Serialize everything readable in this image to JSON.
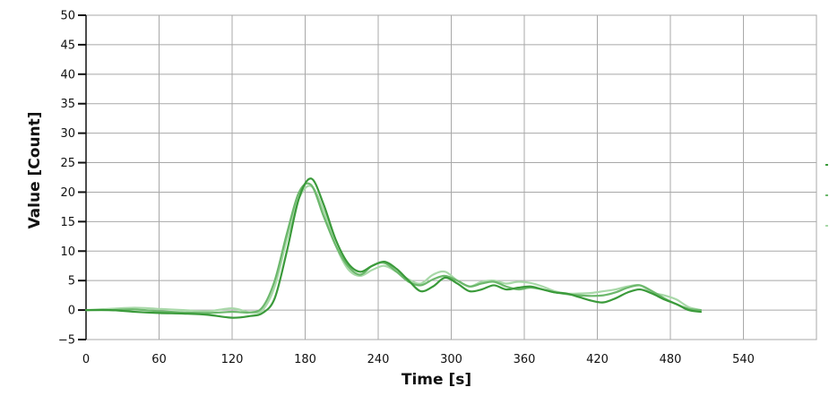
{
  "chart_data": {
    "type": "line",
    "xlabel": "Time [s]",
    "ylabel": "Value [Count]",
    "xlim": [
      0,
      600
    ],
    "ylim": [
      -5,
      50
    ],
    "x_ticks": [
      0,
      60,
      120,
      180,
      240,
      300,
      360,
      420,
      480,
      540
    ],
    "y_ticks": [
      -5,
      0,
      5,
      10,
      15,
      20,
      25,
      30,
      35,
      40,
      45,
      50
    ],
    "grid": true,
    "legend": "right, markers only",
    "series": [
      {
        "color": "#3a9a3a",
        "x": [
          0,
          20,
          40,
          60,
          80,
          100,
          120,
          135,
          145,
          155,
          165,
          175,
          185,
          195,
          205,
          215,
          225,
          235,
          245,
          255,
          265,
          275,
          285,
          295,
          305,
          315,
          325,
          335,
          345,
          355,
          365,
          375,
          385,
          395,
          405,
          415,
          425,
          435,
          445,
          455,
          465,
          475,
          485,
          495,
          505
        ],
        "y": [
          0,
          0,
          -0.3,
          -0.5,
          -0.6,
          -0.8,
          -1.3,
          -1,
          -0.5,
          2,
          10,
          19,
          22.3,
          18,
          12,
          8,
          6.5,
          7.5,
          8.2,
          7,
          5,
          3.2,
          4,
          5.5,
          4.5,
          3.2,
          3.5,
          4.2,
          3.5,
          3.8,
          4,
          3.5,
          3,
          2.8,
          2.2,
          1.6,
          1.3,
          2,
          3,
          3.5,
          2.8,
          1.8,
          1,
          0,
          -0.3
        ]
      },
      {
        "color": "#6cb86c",
        "x": [
          0,
          20,
          40,
          60,
          80,
          100,
          120,
          135,
          145,
          155,
          165,
          175,
          185,
          195,
          205,
          215,
          225,
          235,
          245,
          255,
          265,
          275,
          285,
          295,
          305,
          315,
          325,
          335,
          345,
          355,
          365,
          375,
          385,
          395,
          405,
          415,
          425,
          435,
          445,
          455,
          465,
          475,
          485,
          495,
          505
        ],
        "y": [
          0,
          0,
          0.1,
          -0.2,
          -0.4,
          -0.5,
          -0.3,
          -0.4,
          0.5,
          5,
          13,
          20,
          21.2,
          16,
          11,
          7.5,
          6,
          7.5,
          8,
          6.5,
          4.8,
          4.2,
          5.2,
          5.8,
          5,
          4,
          4.5,
          4.8,
          4,
          3.5,
          3.8,
          3.5,
          3,
          2.7,
          2.5,
          2.4,
          2.5,
          3,
          3.8,
          4.2,
          3.2,
          2,
          1,
          0.2,
          0
        ]
      },
      {
        "color": "#a8d8a8",
        "x": [
          0,
          20,
          40,
          60,
          80,
          100,
          120,
          135,
          145,
          155,
          165,
          175,
          185,
          195,
          205,
          215,
          225,
          235,
          245,
          255,
          265,
          275,
          285,
          295,
          305,
          315,
          325,
          335,
          345,
          355,
          365,
          375,
          385,
          395,
          405,
          415,
          425,
          435,
          445,
          455,
          465,
          475,
          485,
          495,
          505
        ],
        "y": [
          0,
          0.2,
          0.4,
          0.2,
          0,
          -0.2,
          0.3,
          -0.4,
          0,
          4,
          12,
          19,
          21,
          17,
          11,
          7,
          5.8,
          6.8,
          7.5,
          6.5,
          5.2,
          4.5,
          6,
          6.5,
          5,
          4,
          4.8,
          5,
          4.5,
          4.8,
          4.6,
          4,
          3.2,
          2.8,
          2.8,
          2.9,
          3.2,
          3.5,
          4,
          4.2,
          3,
          2.5,
          1.8,
          0.5,
          0
        ]
      }
    ]
  }
}
